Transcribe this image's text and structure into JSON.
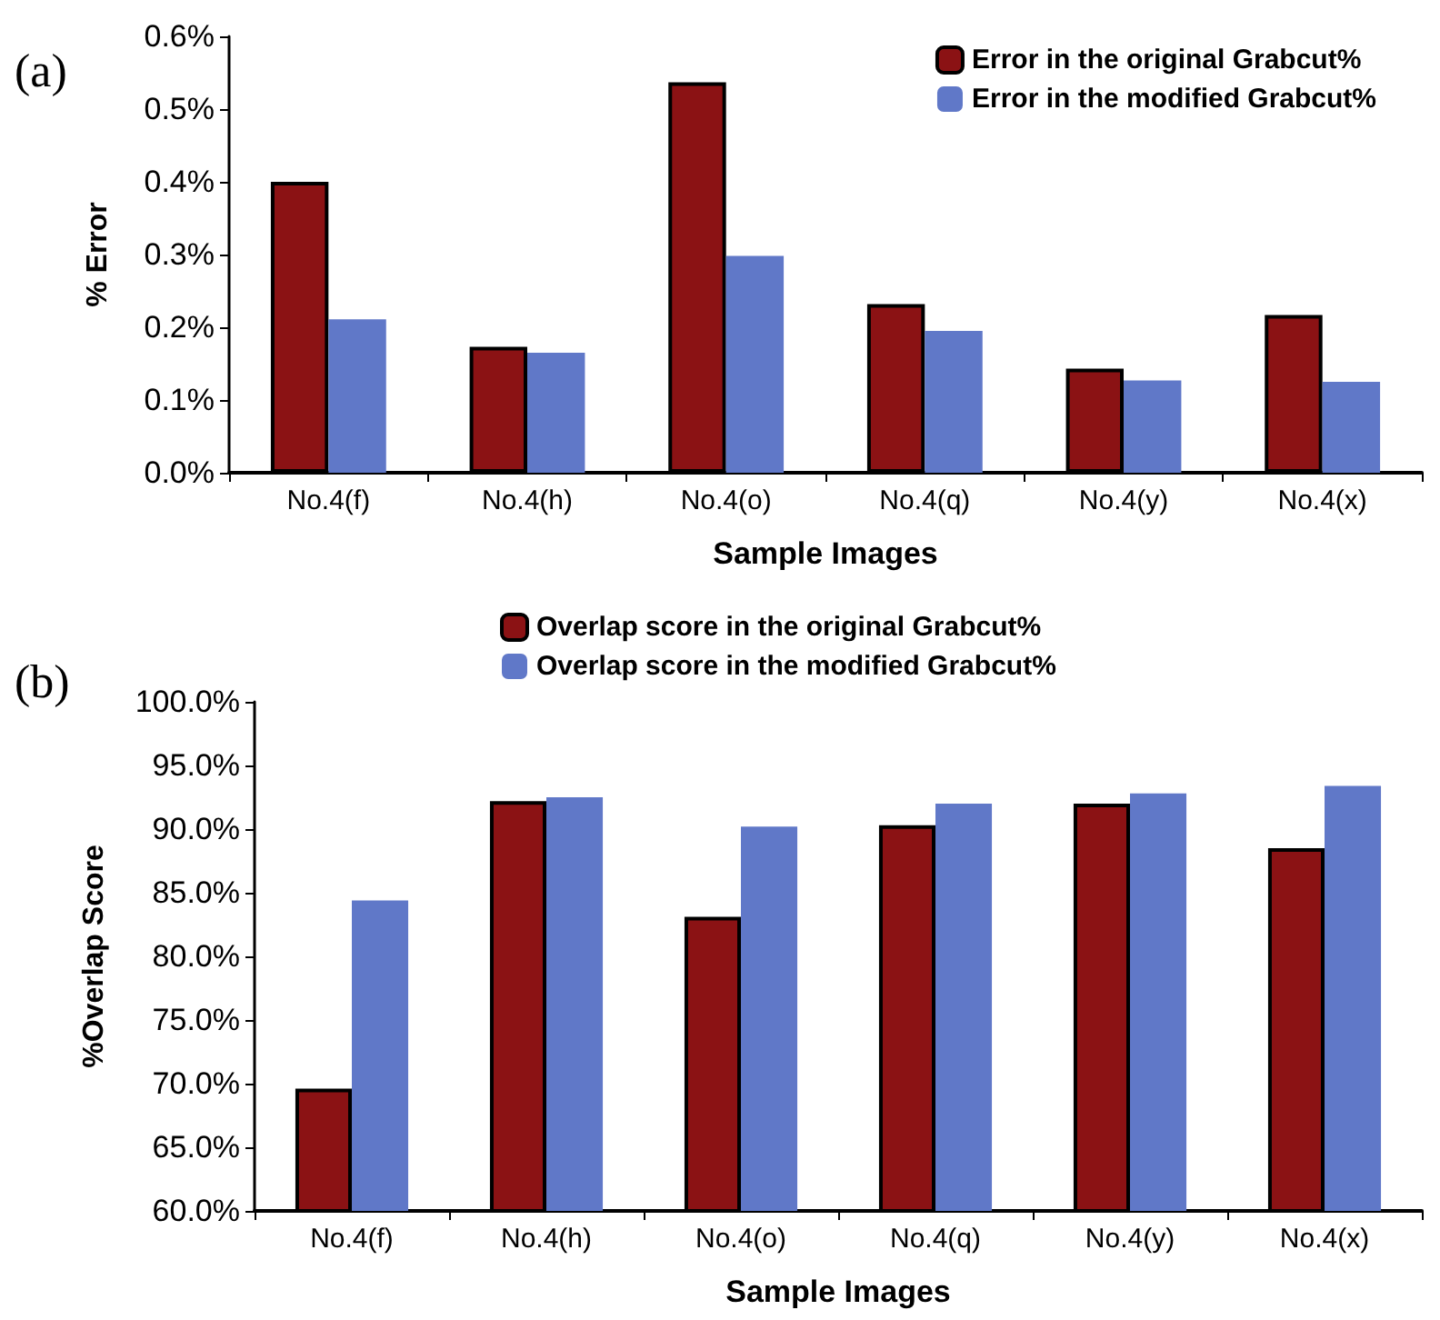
{
  "chart_data": [
    {
      "type": "bar",
      "annotations": [
        "(a)"
      ],
      "xlabel": "Sample Images",
      "ylabel": "% Error",
      "categories": [
        "No.4(f)",
        "No.4(h)",
        "No.4(o)",
        "No.4(q)",
        "No.4(y)",
        "No.4(x)"
      ],
      "series": [
        {
          "name": "Error in the original Grabcut%",
          "color": "#8b1214",
          "values": [
            0.4,
            0.173,
            0.537,
            0.232,
            0.143,
            0.217
          ]
        },
        {
          "name": "Error in the modified Grabcut%",
          "color": "#6078c8",
          "values": [
            0.211,
            0.165,
            0.298,
            0.195,
            0.127,
            0.125
          ]
        }
      ],
      "ylim": [
        0,
        0.6
      ],
      "yticks": [
        {
          "value": 0,
          "label": "0.0%"
        },
        {
          "value": 0.1,
          "label": "0.1%"
        },
        {
          "value": 0.2,
          "label": "0.2%"
        },
        {
          "value": 0.3,
          "label": "0.3%"
        },
        {
          "value": 0.4,
          "label": "0.4%"
        },
        {
          "value": 0.5,
          "label": "0.5%"
        },
        {
          "value": 0.6,
          "label": "0.6%"
        }
      ],
      "grid": false,
      "legend": "top right"
    },
    {
      "type": "bar",
      "annotations": [
        "(b)"
      ],
      "xlabel": "Sample Images",
      "ylabel": "%Overlap Score",
      "categories": [
        "No.4(f)",
        "No.4(h)",
        "No.4(o)",
        "No.4(q)",
        "No.4(y)",
        "No.4(x)"
      ],
      "series": [
        {
          "name": "Overlap score in the original Grabcut%",
          "color": "#8b1214",
          "values": [
            69.6,
            92.2,
            83.1,
            90.3,
            92.0,
            88.5
          ]
        },
        {
          "name": "Overlap score in the modified Grabcut%",
          "color": "#6078c8",
          "values": [
            84.4,
            92.5,
            90.2,
            92.0,
            92.8,
            93.4
          ]
        }
      ],
      "ylim": [
        60,
        100
      ],
      "yticks": [
        {
          "value": 60,
          "label": "60.0%"
        },
        {
          "value": 65,
          "label": "65.0%"
        },
        {
          "value": 70,
          "label": "70.0%"
        },
        {
          "value": 75,
          "label": "75.0%"
        },
        {
          "value": 80,
          "label": "80.0%"
        },
        {
          "value": 85,
          "label": "85.0%"
        },
        {
          "value": 90,
          "label": "90.0%"
        },
        {
          "value": 95,
          "label": "95.0%"
        },
        {
          "value": 100,
          "label": "100.0%"
        }
      ],
      "grid": false,
      "legend": "top"
    }
  ]
}
